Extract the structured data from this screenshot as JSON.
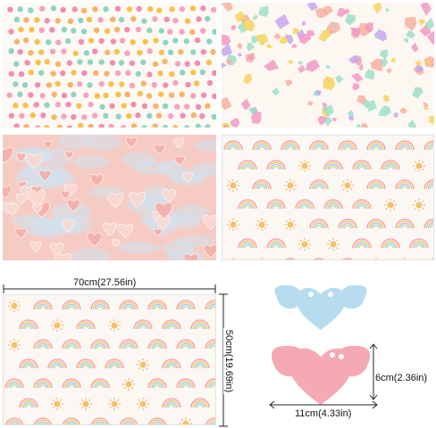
{
  "panels": [
    {
      "pattern": "polka-dots",
      "colors": [
        "#f28db2",
        "#f7c14e",
        "#8fd3c3",
        "#f5a3c0",
        "#f4b46b"
      ]
    },
    {
      "pattern": "terrazzo-shapes",
      "colors": [
        "#f19ac4",
        "#c7a6f0",
        "#f4d35e",
        "#9edfc9",
        "#f7b2a2"
      ]
    },
    {
      "pattern": "pink-hearts-clouds",
      "colors": [
        "#f3b0aa",
        "#f8d9d2",
        "#cfe3f0",
        "#ffffff"
      ]
    },
    {
      "pattern": "rainbows-and-suns",
      "colors": [
        "#f19aa5",
        "#f5c06b",
        "#9bc7e8",
        "#b9d79b",
        "#f3a953"
      ]
    },
    {
      "pattern": "rainbows-and-suns",
      "colors": [
        "#f19aa5",
        "#f5c06b",
        "#9bc7e8",
        "#b9d79b",
        "#f3a953"
      ]
    }
  ],
  "dimensions": {
    "paper_width": "70cm(27.56in)",
    "paper_height": "50cm(19.69in)",
    "tag_height": "6cm(2.36in)",
    "tag_width": "11cm(4.33in)"
  },
  "tags": {
    "top_color": "#b7dcef",
    "bottom_color": "#f4a9b4"
  }
}
